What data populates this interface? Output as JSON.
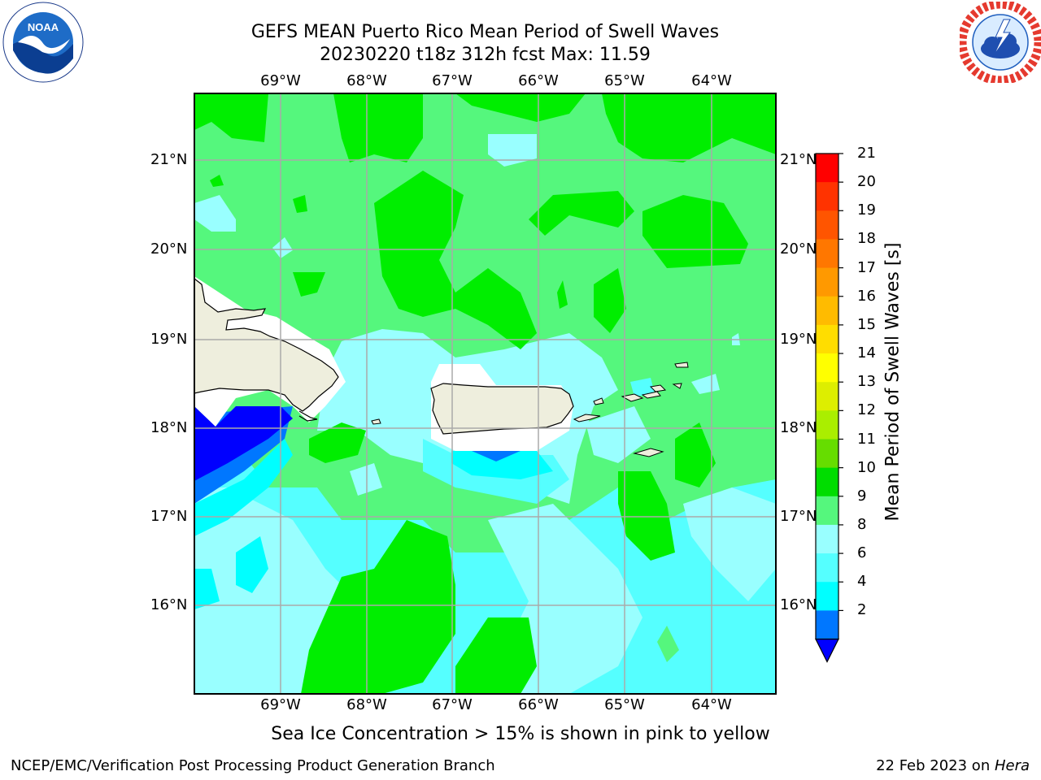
{
  "header": {
    "title_line1": "GEFS MEAN Puerto Rico Mean Period of Swell Waves",
    "title_line2": "20230220 t18z 312h fcst   Max: 11.59"
  },
  "logos": {
    "left": {
      "name": "noaa-logo",
      "text": "NOAA",
      "ring_text": "NATIONAL OCEANIC AND ATMOSPHERIC ADMINISTRATION · U.S. DEPARTMENT OF COMMERCE"
    },
    "right": {
      "name": "nws-logo",
      "ring_text": "NATIONAL WEATHER SERVICE"
    }
  },
  "map": {
    "lon_labels": [
      "69°W",
      "68°W",
      "67°W",
      "66°W",
      "65°W",
      "64°W"
    ],
    "lat_labels": [
      "21°N",
      "20°N",
      "19°N",
      "18°N",
      "17°N",
      "16°N"
    ],
    "colors": {
      "ocean_light_green": "#55f77d",
      "ocean_green": "#00ee00",
      "ocean_pale_cyan": "#99ffff",
      "ocean_cyan": "#55ffff",
      "ocean_bright_cyan": "#00ffff",
      "ocean_blue": "#0077ff",
      "ocean_deep_blue": "#0000ff",
      "land": "#eeeedd",
      "grid": "#aaaaaa"
    }
  },
  "colorbar": {
    "label": "Mean Period of Swell Waves [s]",
    "ticks": [
      "21",
      "20",
      "19",
      "18",
      "17",
      "16",
      "15",
      "14",
      "13",
      "12",
      "11",
      "10",
      "9",
      "8",
      "6",
      "4",
      "2"
    ],
    "colors": [
      "#ff0000",
      "#ff3300",
      "#ff5500",
      "#ff7700",
      "#ff9900",
      "#ffbb00",
      "#ffdd00",
      "#ffff00",
      "#ddee00",
      "#aaee00",
      "#66dd00",
      "#00dd00",
      "#55f77d",
      "#99ffff",
      "#55ffff",
      "#00ffff",
      "#0077ff"
    ],
    "under_color": "#0000ff"
  },
  "footer": {
    "footnote": "Sea Ice Concentration > 15% is shown in pink to yellow",
    "credit_left": "NCEP/EMC/Verification Post Processing Product Generation Branch",
    "credit_right_date": "22 Feb 2023 on ",
    "credit_right_host": "Hera"
  }
}
